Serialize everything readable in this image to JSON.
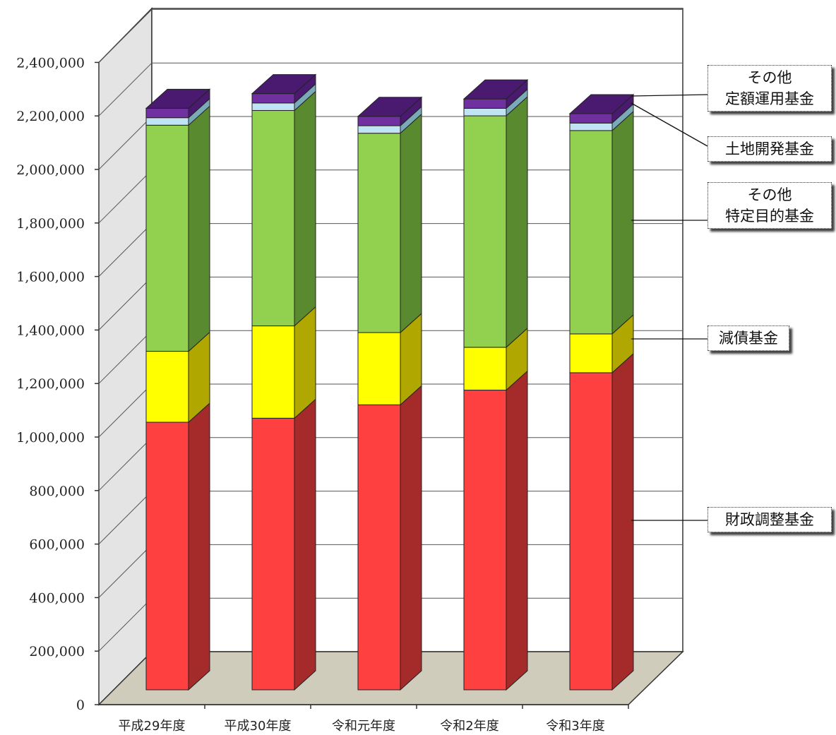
{
  "chart_data": {
    "type": "bar",
    "stacked": true,
    "three_d": true,
    "title": "",
    "xlabel": "",
    "ylabel": "",
    "ylim": [
      0,
      2400000
    ],
    "yticks": [
      "0",
      "200,000",
      "400,000",
      "600,000",
      "800,000",
      "1,000,000",
      "1,200,000",
      "1,400,000",
      "1,600,000",
      "1,800,000",
      "2,000,000",
      "2,200,000",
      "2,400,000"
    ],
    "grid": true,
    "legend_position": "right",
    "categories": [
      "平成29年度",
      "平成30年度",
      "令和元年度",
      "令和2年度",
      "令和3年度"
    ],
    "series": [
      {
        "name": "財政調整基金",
        "color": "#ff4040",
        "side": "#a52a2a",
        "values": [
          1000000,
          1015000,
          1065000,
          1120000,
          1185000
        ]
      },
      {
        "name": "減債基金",
        "color": "#ffff00",
        "side": "#b0a800",
        "values": [
          265000,
          345000,
          270000,
          160000,
          145000
        ]
      },
      {
        "name": "その他特定目的基金",
        "color": "#92d050",
        "side": "#5a8a30",
        "values": [
          845000,
          805000,
          745000,
          865000,
          760000
        ]
      },
      {
        "name": "土地開発基金",
        "color": "#c0e4f4",
        "side": "#7aaab8",
        "values": [
          28000,
          28000,
          28000,
          28000,
          28000
        ]
      },
      {
        "name": "その他定額運用基金",
        "color": "#7030a0",
        "side": "#4a1a70",
        "values": [
          35000,
          35000,
          35000,
          35000,
          35000
        ]
      }
    ]
  },
  "legend": {
    "other_fixed_line1": "その他",
    "other_fixed_line2": "定額運用基金",
    "land": "土地開発基金",
    "other_specific_line1": "その他",
    "other_specific_line2": "特定目的基金",
    "debt": "減債基金",
    "fiscal": "財政調整基金"
  }
}
